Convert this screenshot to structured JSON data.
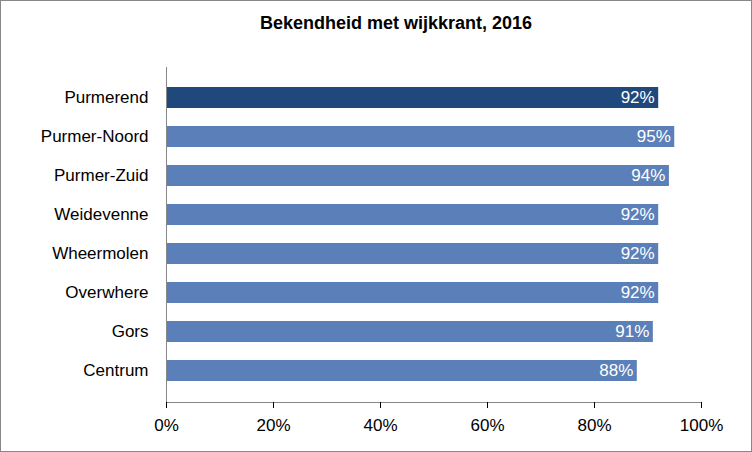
{
  "chart_data": {
    "type": "bar",
    "title": "Bekendheid met wijkkrant, 2016",
    "orientation": "horizontal",
    "categories": [
      "Purmerend",
      "Purmer-Noord",
      "Purmer-Zuid",
      "Weidevenne",
      "Wheermolen",
      "Overwhere",
      "Gors",
      "Centrum"
    ],
    "values": [
      92,
      95,
      94,
      92,
      92,
      92,
      91,
      88
    ],
    "value_labels": [
      "92%",
      "95%",
      "94%",
      "92%",
      "92%",
      "92%",
      "91%",
      "88%"
    ],
    "colors": [
      "#1f497d",
      "#5b7fb8",
      "#5b7fb8",
      "#5b7fb8",
      "#5b7fb8",
      "#5b7fb8",
      "#5b7fb8",
      "#5b7fb8"
    ],
    "xlim": [
      0,
      100
    ],
    "xticks": [
      {
        "value": 0,
        "label": "0%"
      },
      {
        "value": 20,
        "label": "20%"
      },
      {
        "value": 40,
        "label": "40%"
      },
      {
        "value": 60,
        "label": "60%"
      },
      {
        "value": 80,
        "label": "80%"
      },
      {
        "value": 100,
        "label": "100%"
      }
    ],
    "grid": false,
    "data_labels": true
  }
}
